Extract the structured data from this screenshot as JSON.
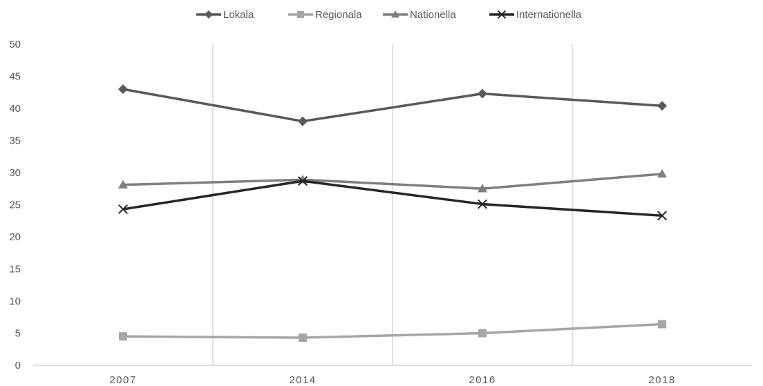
{
  "chart_data": {
    "type": "line",
    "categories": [
      "2007",
      "2014",
      "2016",
      "2018"
    ],
    "ylim": [
      0,
      50
    ],
    "yticks": [
      0,
      5,
      10,
      15,
      20,
      25,
      30,
      35,
      40,
      45,
      50
    ],
    "grid": "vertical",
    "legend_position": "top",
    "series": [
      {
        "name": "Lokala",
        "values": [
          43.0,
          38.0,
          42.3,
          40.4
        ],
        "color": "#595959",
        "marker": "diamond"
      },
      {
        "name": "Regionala",
        "values": [
          4.5,
          4.3,
          5.0,
          6.4
        ],
        "color": "#a6a6a6",
        "marker": "square"
      },
      {
        "name": "Nationella",
        "values": [
          28.1,
          28.9,
          27.5,
          29.8
        ],
        "color": "#7f7f7f",
        "marker": "triangle"
      },
      {
        "name": "Internationella",
        "values": [
          24.3,
          28.7,
          25.1,
          23.3
        ],
        "color": "#262626",
        "marker": "x"
      }
    ]
  }
}
